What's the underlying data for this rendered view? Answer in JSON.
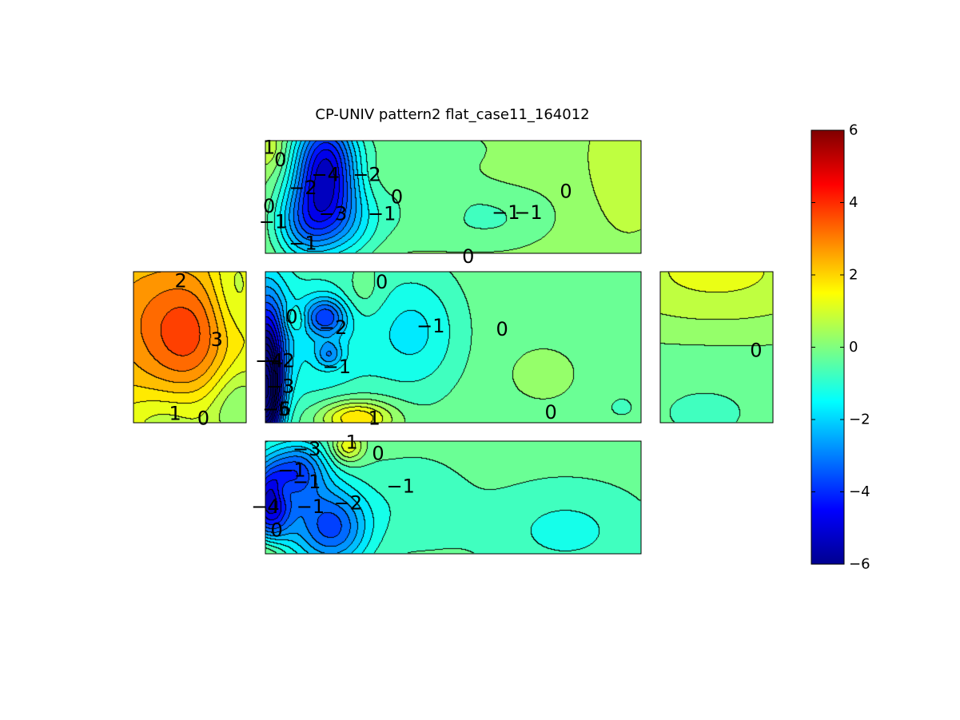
{
  "chart_data": {
    "type": "heatmap",
    "title": "CP-UNIV pattern2 flat_case11_164012",
    "xlabel": "",
    "ylabel": "",
    "colormap": "jet",
    "clim": [
      -6,
      6
    ],
    "colorbar_ticks": [
      {
        "value": 6,
        "label": "6"
      },
      {
        "value": 4,
        "label": "4"
      },
      {
        "value": 2,
        "label": "2"
      },
      {
        "value": 0,
        "label": "0"
      },
      {
        "value": -2,
        "label": "−2"
      },
      {
        "value": -4,
        "label": "−4"
      },
      {
        "value": -6,
        "label": "−6"
      }
    ],
    "panels": [
      {
        "name": "top",
        "background": 0.3,
        "blobs": [
          {
            "cx": 0.16,
            "cy": 0.25,
            "sx": 0.06,
            "sy": 0.35,
            "a": -5.2
          },
          {
            "cx": 0.1,
            "cy": 0.75,
            "sx": 0.06,
            "sy": 0.25,
            "a": -2.5
          },
          {
            "cx": 0.22,
            "cy": 0.75,
            "sx": 0.07,
            "sy": 0.25,
            "a": -1.6
          },
          {
            "cx": 0.01,
            "cy": 0.05,
            "sx": 0.03,
            "sy": 0.15,
            "a": 0.8
          },
          {
            "cx": 0.43,
            "cy": 0.6,
            "sx": 0.1,
            "sy": 0.25,
            "a": -0.9
          },
          {
            "cx": 0.62,
            "cy": 0.7,
            "sx": 0.09,
            "sy": 0.2,
            "a": -0.7
          },
          {
            "cx": 0.42,
            "cy": 0.05,
            "sx": 0.15,
            "sy": 0.15,
            "a": -0.5
          },
          {
            "cx": 0.95,
            "cy": 0.3,
            "sx": 0.08,
            "sy": 0.4,
            "a": 0.6
          },
          {
            "cx": 0.45,
            "cy": 0.62,
            "sx": 0.05,
            "sy": 0.12,
            "a": 0.6
          },
          {
            "cx": 0.82,
            "cy": 0.55,
            "sx": 0.1,
            "sy": 0.35,
            "a": -0.2
          }
        ],
        "labels": [
          {
            "x": 0.01,
            "y": 0.06,
            "t": "1"
          },
          {
            "x": 0.04,
            "y": 0.17,
            "t": "0"
          },
          {
            "x": 0.16,
            "y": 0.3,
            "t": "−4"
          },
          {
            "x": 0.27,
            "y": 0.3,
            "t": "−2"
          },
          {
            "x": 0.1,
            "y": 0.42,
            "t": "−2"
          },
          {
            "x": 0.01,
            "y": 0.58,
            "t": "0"
          },
          {
            "x": 0.02,
            "y": 0.72,
            "t": "−1"
          },
          {
            "x": 0.18,
            "y": 0.65,
            "t": "−3"
          },
          {
            "x": 0.31,
            "y": 0.65,
            "t": "−1"
          },
          {
            "x": 0.35,
            "y": 0.5,
            "t": "0"
          },
          {
            "x": 0.64,
            "y": 0.64,
            "t": "−1"
          },
          {
            "x": 0.7,
            "y": 0.64,
            "t": "−1"
          },
          {
            "x": 0.8,
            "y": 0.45,
            "t": "0"
          },
          {
            "x": 0.1,
            "y": 0.91,
            "t": "−1"
          },
          {
            "x": 0.54,
            "y": 1.03,
            "t": "0"
          }
        ]
      },
      {
        "name": "middle",
        "background": -0.15,
        "blobs": [
          {
            "cx": 0.0,
            "cy": 0.85,
            "sx": 0.03,
            "sy": 0.25,
            "a": -6.4
          },
          {
            "cx": 0.0,
            "cy": 0.45,
            "sx": 0.04,
            "sy": 0.3,
            "a": -3.5
          },
          {
            "cx": 0.16,
            "cy": 0.3,
            "sx": 0.04,
            "sy": 0.09,
            "a": -2.6
          },
          {
            "cx": 0.17,
            "cy": 0.55,
            "sx": 0.025,
            "sy": 0.06,
            "a": -1.6
          },
          {
            "cx": 0.13,
            "cy": 0.45,
            "sx": 0.12,
            "sy": 0.4,
            "a": -1.3
          },
          {
            "cx": 0.08,
            "cy": 0.32,
            "sx": 0.02,
            "sy": 0.06,
            "a": 1.0
          },
          {
            "cx": 0.4,
            "cy": 0.4,
            "sx": 0.09,
            "sy": 0.3,
            "a": -1.4
          },
          {
            "cx": 0.26,
            "cy": 0.15,
            "sx": 0.04,
            "sy": 0.12,
            "a": 0.6
          },
          {
            "cx": 0.24,
            "cy": 0.97,
            "sx": 0.07,
            "sy": 0.08,
            "a": 2.5
          },
          {
            "cx": 0.74,
            "cy": 0.68,
            "sx": 0.05,
            "sy": 0.1,
            "a": 0.6
          },
          {
            "cx": 0.95,
            "cy": 0.9,
            "sx": 0.05,
            "sy": 0.1,
            "a": -0.4
          }
        ],
        "labels": [
          {
            "x": 0.07,
            "y": 0.3,
            "t": "0"
          },
          {
            "x": 0.18,
            "y": 0.37,
            "t": "−2"
          },
          {
            "x": 0.31,
            "y": 0.07,
            "t": "0"
          },
          {
            "x": 0.44,
            "y": 0.36,
            "t": "−1"
          },
          {
            "x": 0.63,
            "y": 0.38,
            "t": "0"
          },
          {
            "x": 0.04,
            "y": 0.59,
            "t": "−2"
          },
          {
            "x": 0.19,
            "y": 0.63,
            "t": "−1"
          },
          {
            "x": 0.01,
            "y": 0.59,
            "t": "−4"
          },
          {
            "x": 0.04,
            "y": 0.76,
            "t": "−3"
          },
          {
            "x": 0.03,
            "y": 0.91,
            "t": "−6"
          },
          {
            "x": 0.03,
            "y": 0.91,
            "t": "−5"
          },
          {
            "x": 0.29,
            "y": 0.97,
            "t": "1"
          },
          {
            "x": 0.76,
            "y": 0.93,
            "t": "0"
          }
        ]
      },
      {
        "name": "left",
        "background": 1.6,
        "blobs": [
          {
            "cx": 0.5,
            "cy": 0.42,
            "sx": 0.28,
            "sy": 0.28,
            "a": 1.8
          },
          {
            "cx": 0.0,
            "cy": 0.3,
            "sx": 0.4,
            "sy": 0.35,
            "a": 0.9
          },
          {
            "cx": 0.9,
            "cy": 0.15,
            "sx": 0.15,
            "sy": 0.25,
            "a": -1.0
          },
          {
            "cx": 0.95,
            "cy": 0.9,
            "sx": 0.2,
            "sy": 0.2,
            "a": -1.6
          },
          {
            "cx": 0.3,
            "cy": 1.0,
            "sx": 0.3,
            "sy": 0.15,
            "a": -1.0
          }
        ],
        "labels": [
          {
            "x": 0.42,
            "y": 0.06,
            "t": "2"
          },
          {
            "x": 0.74,
            "y": 0.45,
            "t": "3"
          },
          {
            "x": 0.37,
            "y": 0.94,
            "t": "1"
          },
          {
            "x": 0.62,
            "y": 0.97,
            "t": "0"
          }
        ]
      },
      {
        "name": "right",
        "background": -0.25,
        "blobs": [
          {
            "cx": 0.5,
            "cy": 0.0,
            "sx": 0.9,
            "sy": 0.3,
            "a": 1.4
          },
          {
            "cx": 0.4,
            "cy": 0.9,
            "sx": 0.6,
            "sy": 0.3,
            "a": -0.3
          }
        ],
        "labels": [
          {
            "x": 0.85,
            "y": 0.52,
            "t": "0"
          }
        ]
      },
      {
        "name": "bottom",
        "background": -0.25,
        "blobs": [
          {
            "cx": 0.01,
            "cy": 0.55,
            "sx": 0.04,
            "sy": 0.25,
            "a": -4.2
          },
          {
            "cx": 0.09,
            "cy": 0.25,
            "sx": 0.05,
            "sy": 0.18,
            "a": -2.6
          },
          {
            "cx": 0.18,
            "cy": 0.78,
            "sx": 0.07,
            "sy": 0.25,
            "a": -2.8
          },
          {
            "cx": 0.1,
            "cy": 0.6,
            "sx": 0.1,
            "sy": 0.35,
            "a": -1.0
          },
          {
            "cx": 0.22,
            "cy": 0.05,
            "sx": 0.03,
            "sy": 0.1,
            "a": 1.8
          },
          {
            "cx": 0.05,
            "cy": 0.45,
            "sx": 0.02,
            "sy": 0.08,
            "a": 0.8
          },
          {
            "cx": 0.0,
            "cy": 1.0,
            "sx": 0.04,
            "sy": 0.12,
            "a": 1.4
          },
          {
            "cx": 0.4,
            "cy": 0.55,
            "sx": 0.1,
            "sy": 0.3,
            "a": -0.6
          },
          {
            "cx": 0.8,
            "cy": 0.8,
            "sx": 0.15,
            "sy": 0.3,
            "a": -0.9
          }
        ],
        "labels": [
          {
            "x": 0.11,
            "y": 0.07,
            "t": "−3"
          },
          {
            "x": 0.23,
            "y": 0.01,
            "t": "1"
          },
          {
            "x": 0.3,
            "y": 0.11,
            "t": "0"
          },
          {
            "x": 0.07,
            "y": 0.26,
            "t": "−1"
          },
          {
            "x": 0.11,
            "y": 0.36,
            "t": "−1"
          },
          {
            "x": 0.36,
            "y": 0.4,
            "t": "−1"
          },
          {
            "x": 0.0,
            "y": 0.58,
            "t": "−4"
          },
          {
            "x": 0.12,
            "y": 0.58,
            "t": "−1"
          },
          {
            "x": 0.22,
            "y": 0.55,
            "t": "−2"
          },
          {
            "x": 0.03,
            "y": 0.79,
            "t": "0"
          }
        ]
      }
    ]
  }
}
